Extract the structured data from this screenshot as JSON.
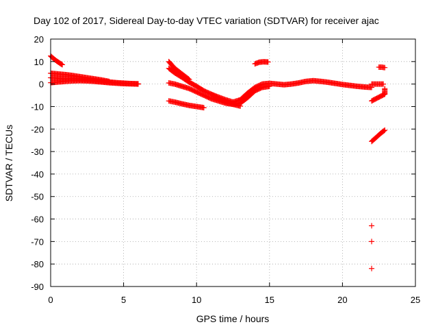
{
  "chart_data": {
    "type": "scatter",
    "title": "Day 102 of 2017, Sidereal Day-to-day VTEC variation (SDTVAR) for receiver ajac",
    "xlabel": "GPS time / hours",
    "ylabel": "SDTVAR / TECUs",
    "xlim": [
      0,
      25
    ],
    "ylim": [
      -90,
      20
    ],
    "xticks": [
      0,
      5,
      10,
      15,
      20,
      25
    ],
    "yticks": [
      20,
      10,
      0,
      -10,
      -20,
      -30,
      -40,
      -50,
      -60,
      -70,
      -80,
      -90
    ],
    "grid": true,
    "marker": "plus",
    "color": "#ff0000",
    "segments": [
      {
        "x": [
          0.0,
          0.2,
          0.4,
          0.6,
          0.8
        ],
        "y": [
          12.5,
          11.3,
          10.3,
          9.4,
          8.6
        ]
      },
      {
        "x": [
          0.0,
          0.5,
          1.0,
          1.5,
          2.0,
          2.5,
          3.0,
          3.5,
          4.0
        ],
        "y": [
          4.8,
          4.5,
          4.2,
          3.8,
          3.3,
          2.8,
          2.3,
          1.8,
          1.2
        ]
      },
      {
        "x": [
          0.0,
          0.5,
          1.0,
          1.5,
          2.0,
          2.5,
          3.0,
          3.5,
          4.0,
          4.5,
          5.0,
          5.5,
          6.0
        ],
        "y": [
          2.8,
          2.6,
          2.4,
          2.3,
          2.1,
          1.9,
          1.6,
          1.2,
          0.9,
          0.6,
          0.4,
          0.2,
          0.1
        ]
      },
      {
        "x": [
          0.0,
          0.5,
          1.0,
          1.5,
          2.0,
          2.5,
          3.0,
          3.5,
          4.0,
          4.5,
          5.0,
          5.5,
          6.0
        ],
        "y": [
          0.6,
          0.9,
          1.2,
          1.4,
          1.5,
          1.4,
          1.2,
          0.9,
          0.6,
          0.4,
          0.2,
          0.1,
          0.0
        ]
      },
      {
        "x": [
          8.1,
          8.5,
          9.0,
          9.5
        ],
        "y": [
          10.0,
          7.0,
          4.5,
          2.0
        ]
      },
      {
        "x": [
          8.1,
          8.5,
          9.0,
          9.5,
          10.0,
          10.5,
          11.0,
          11.5,
          12.0,
          12.5
        ],
        "y": [
          7.0,
          5.0,
          3.0,
          0.8,
          -1.0,
          -3.0,
          -4.5,
          -5.8,
          -7.0,
          -8.0
        ]
      },
      {
        "x": [
          8.1,
          8.5,
          9.0,
          9.5,
          10.0,
          10.5,
          11.0,
          11.5,
          12.0,
          12.5,
          13.0
        ],
        "y": [
          0.5,
          0.0,
          -1.0,
          -2.0,
          -3.5,
          -5.0,
          -6.5,
          -7.5,
          -8.5,
          -9.0,
          -9.8
        ]
      },
      {
        "x": [
          8.1,
          8.5,
          9.0,
          9.5,
          10.0,
          10.5
        ],
        "y": [
          -7.5,
          -8.0,
          -8.8,
          -9.5,
          -10.0,
          -10.5
        ]
      },
      {
        "x": [
          11.0,
          11.5,
          12.0,
          12.5,
          13.0,
          13.5,
          14.0,
          14.5,
          15.0
        ],
        "y": [
          -4.5,
          -6.5,
          -8.0,
          -9.0,
          -8.5,
          -6.0,
          -3.0,
          -1.5,
          -1.0
        ]
      },
      {
        "x": [
          12.5,
          13.0,
          13.5,
          14.0,
          14.5,
          15.0,
          15.5,
          16.0,
          16.5,
          17.0,
          17.5,
          18.0,
          18.5,
          19.0,
          19.5,
          20.0,
          20.5,
          21.0,
          21.5,
          22.0
        ],
        "y": [
          -8.0,
          -7.0,
          -4.0,
          -1.5,
          0.0,
          0.3,
          0.0,
          -0.3,
          0.0,
          0.5,
          1.2,
          1.5,
          1.2,
          0.8,
          0.3,
          -0.2,
          -0.6,
          -1.0,
          -1.3,
          -1.5
        ]
      },
      {
        "x": [
          14.0,
          14.3,
          14.6,
          14.9
        ],
        "y": [
          9.0,
          9.7,
          9.9,
          9.8
        ]
      },
      {
        "x": [
          22.0,
          22.3,
          22.6,
          22.9
        ],
        "y": [
          -7.5,
          -6.5,
          -5.5,
          -4.5
        ]
      },
      {
        "x": [
          22.0,
          22.3,
          22.6,
          22.9
        ],
        "y": [
          -25.5,
          -23.8,
          -22.0,
          -20.5
        ]
      },
      {
        "x": [
          22.0,
          22.4,
          22.8
        ],
        "y": [
          0.0,
          0.0,
          0.0
        ]
      },
      {
        "x": [
          22.5,
          22.7,
          22.9
        ],
        "y": [
          7.5,
          7.5,
          7.3
        ]
      },
      {
        "x": [
          22.9,
          22.9
        ],
        "y": [
          -2.0,
          -4.5
        ]
      },
      {
        "x": [
          22.0
        ],
        "y": [
          -63.0
        ]
      },
      {
        "x": [
          22.0
        ],
        "y": [
          -70.0
        ]
      },
      {
        "x": [
          22.0
        ],
        "y": [
          -82.0
        ]
      }
    ]
  }
}
